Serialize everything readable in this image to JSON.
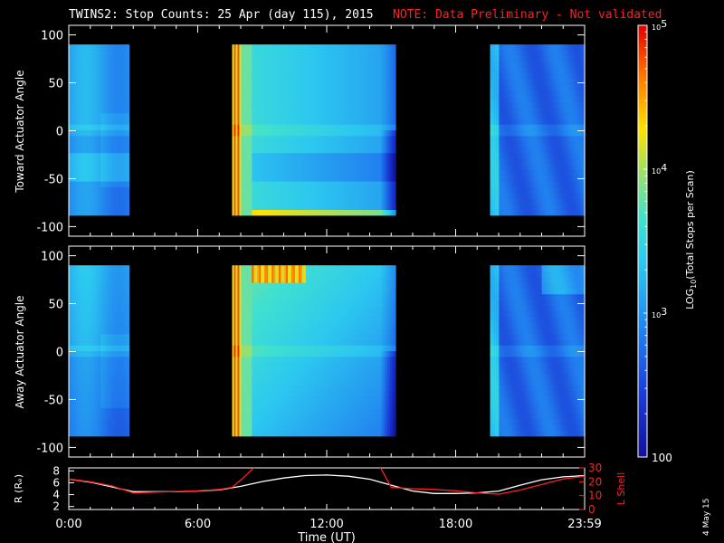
{
  "title": {
    "main": "TWINS2: Stop Counts: 25 Apr (day 115), 2015",
    "note": "NOTE: Data Preliminary - Not validated"
  },
  "colors": {
    "background": "#000000",
    "axes": "#ffffff",
    "note": "#ff2020",
    "r_line": "#ffffff",
    "lshell_line": "#ff2020",
    "colormap": [
      "#1414a8",
      "#1e5ae6",
      "#30b4f0",
      "#40e0d8",
      "#a0e060",
      "#ffe600",
      "#ff8000",
      "#e00000"
    ]
  },
  "chart_data": [
    {
      "type": "heatmap",
      "name": "toward-panel",
      "ylabel": "Toward Actuator Angle",
      "ylim": [
        -110,
        110
      ],
      "yticks": [
        "100",
        "50",
        "0",
        "-50",
        "-100"
      ],
      "ytick_values": [
        100,
        50,
        0,
        -50,
        -100
      ],
      "xlim": [
        0,
        24
      ],
      "data_intervals_hours": [
        [
          0,
          2.8
        ],
        [
          7.6,
          15.2
        ],
        [
          19.6,
          24
        ]
      ],
      "angle_range": [
        -88,
        90
      ]
    },
    {
      "type": "heatmap",
      "name": "away-panel",
      "ylabel": "Away Actuator Angle",
      "ylim": [
        -110,
        110
      ],
      "yticks": [
        "100",
        "50",
        "0",
        "-50",
        "-100"
      ],
      "ytick_values": [
        100,
        50,
        0,
        -50,
        -100
      ],
      "xlim": [
        0,
        24
      ],
      "data_intervals_hours": [
        [
          0,
          2.8
        ],
        [
          7.6,
          15.2
        ],
        [
          19.6,
          24
        ]
      ],
      "angle_range": [
        -88,
        90
      ]
    },
    {
      "type": "line",
      "name": "orbit-panel",
      "ylabel_left": "R (Rₑ)",
      "ylabel_right": "L Shell",
      "xlabel": "Time (UT)",
      "xticks": [
        "0:00",
        "6:00",
        "12:00",
        "18:00",
        "23:59"
      ],
      "xtick_values": [
        0,
        6,
        12,
        18,
        24
      ],
      "yticks_left": [
        "8",
        "6",
        "4",
        "2"
      ],
      "yticks_left_values": [
        8,
        6,
        4,
        2
      ],
      "yticks_right": [
        "30",
        "20",
        "10",
        "0"
      ],
      "yticks_right_values": [
        30,
        20,
        10,
        0
      ],
      "ylim_left": [
        1.5,
        8.5
      ],
      "ylim_right": [
        0,
        30
      ],
      "series": [
        {
          "name": "R",
          "axis": "left",
          "x": [
            0,
            1,
            2,
            3,
            4,
            5,
            6,
            7,
            8,
            9,
            10,
            11,
            12,
            13,
            14,
            15,
            16,
            17,
            18,
            19,
            20,
            21,
            22,
            23,
            24
          ],
          "values": [
            6.6,
            6.1,
            5.3,
            4.5,
            4.5,
            4.5,
            4.6,
            4.8,
            5.4,
            6.2,
            6.8,
            7.2,
            7.3,
            7.1,
            6.6,
            5.6,
            4.6,
            4.2,
            4.2,
            4.3,
            4.6,
            5.6,
            6.5,
            7.0,
            7.2
          ]
        },
        {
          "name": "L Shell",
          "axis": "right",
          "x": [
            0,
            1,
            2,
            3,
            4,
            5,
            6,
            7,
            7.6,
            8.2,
            8.8,
            14.4,
            15,
            16,
            17,
            18,
            19,
            20,
            21,
            22,
            23,
            24
          ],
          "values": [
            22,
            20,
            17,
            12,
            12.5,
            13,
            13.5,
            14.5,
            16,
            24,
            33,
            33,
            16,
            15,
            14.5,
            13.5,
            12,
            11,
            14,
            18,
            22,
            24
          ]
        }
      ]
    }
  ],
  "colorbar": {
    "label": "LOG10(Total Stops per Scan)",
    "label_main": "LOG",
    "label_sub": "10",
    "label_rest": "(Total Stops per Scan)",
    "ticks": [
      {
        "base": "10",
        "exp": "5",
        "value": 100000
      },
      {
        "base": "10",
        "exp": "4",
        "value": 10000
      },
      {
        "base": "10",
        "exp": "3",
        "value": 1000
      },
      {
        "base": "100",
        "exp": "",
        "value": 100
      }
    ],
    "range_log": [
      2,
      5
    ]
  },
  "date_stamp": "4 May 15"
}
